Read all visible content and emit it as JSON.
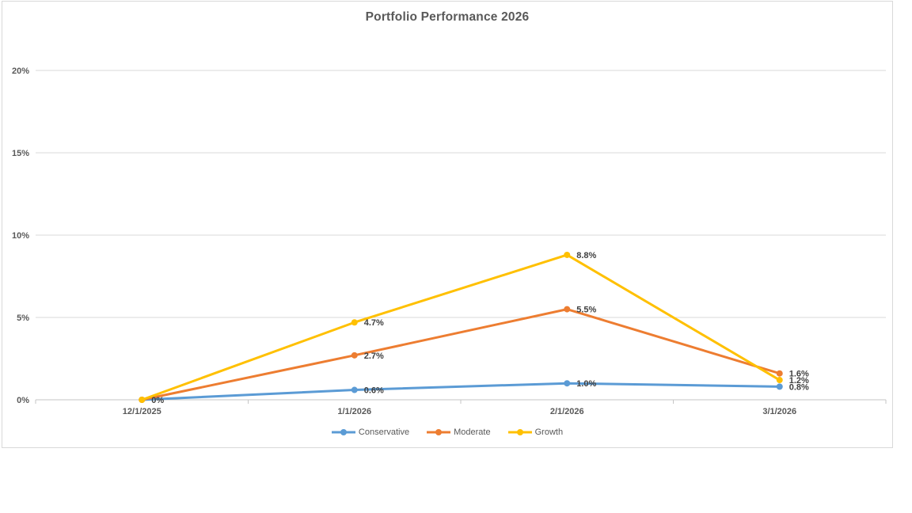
{
  "chart_data": {
    "type": "line",
    "title": "Portfolio Performance 2026",
    "categories": [
      "12/1/2025",
      "1/1/2026",
      "2/1/2026",
      "3/1/2026"
    ],
    "series": [
      {
        "name": "Conservative",
        "color": "#5B9BD5",
        "values": [
          0,
          0.6,
          1.0,
          0.8
        ],
        "labels": [
          null,
          "0.6%",
          "1.0%",
          "0.8%"
        ]
      },
      {
        "name": "Moderate",
        "color": "#ED7D31",
        "values": [
          0,
          2.7,
          5.5,
          1.6
        ],
        "labels": [
          null,
          "2.7%",
          "5.5%",
          "1.6%"
        ]
      },
      {
        "name": "Growth",
        "color": "#FFC000",
        "values": [
          0,
          4.7,
          8.8,
          1.2
        ],
        "labels": [
          "0%",
          "4.7%",
          "8.8%",
          "1.2%"
        ]
      }
    ],
    "y_axis": {
      "min": 0,
      "max": 20,
      "ticks": [
        "0%",
        "5%",
        "10%",
        "15%",
        "20%"
      ]
    },
    "grid": true,
    "legend_position": "bottom",
    "colors": {
      "gridline": "#D9D9D9",
      "axis_line": "#C6C6C6",
      "label_text": "#404040",
      "axis_text": "#595959",
      "title_text": "#595959",
      "frame_border": "#D9D9D9"
    }
  }
}
